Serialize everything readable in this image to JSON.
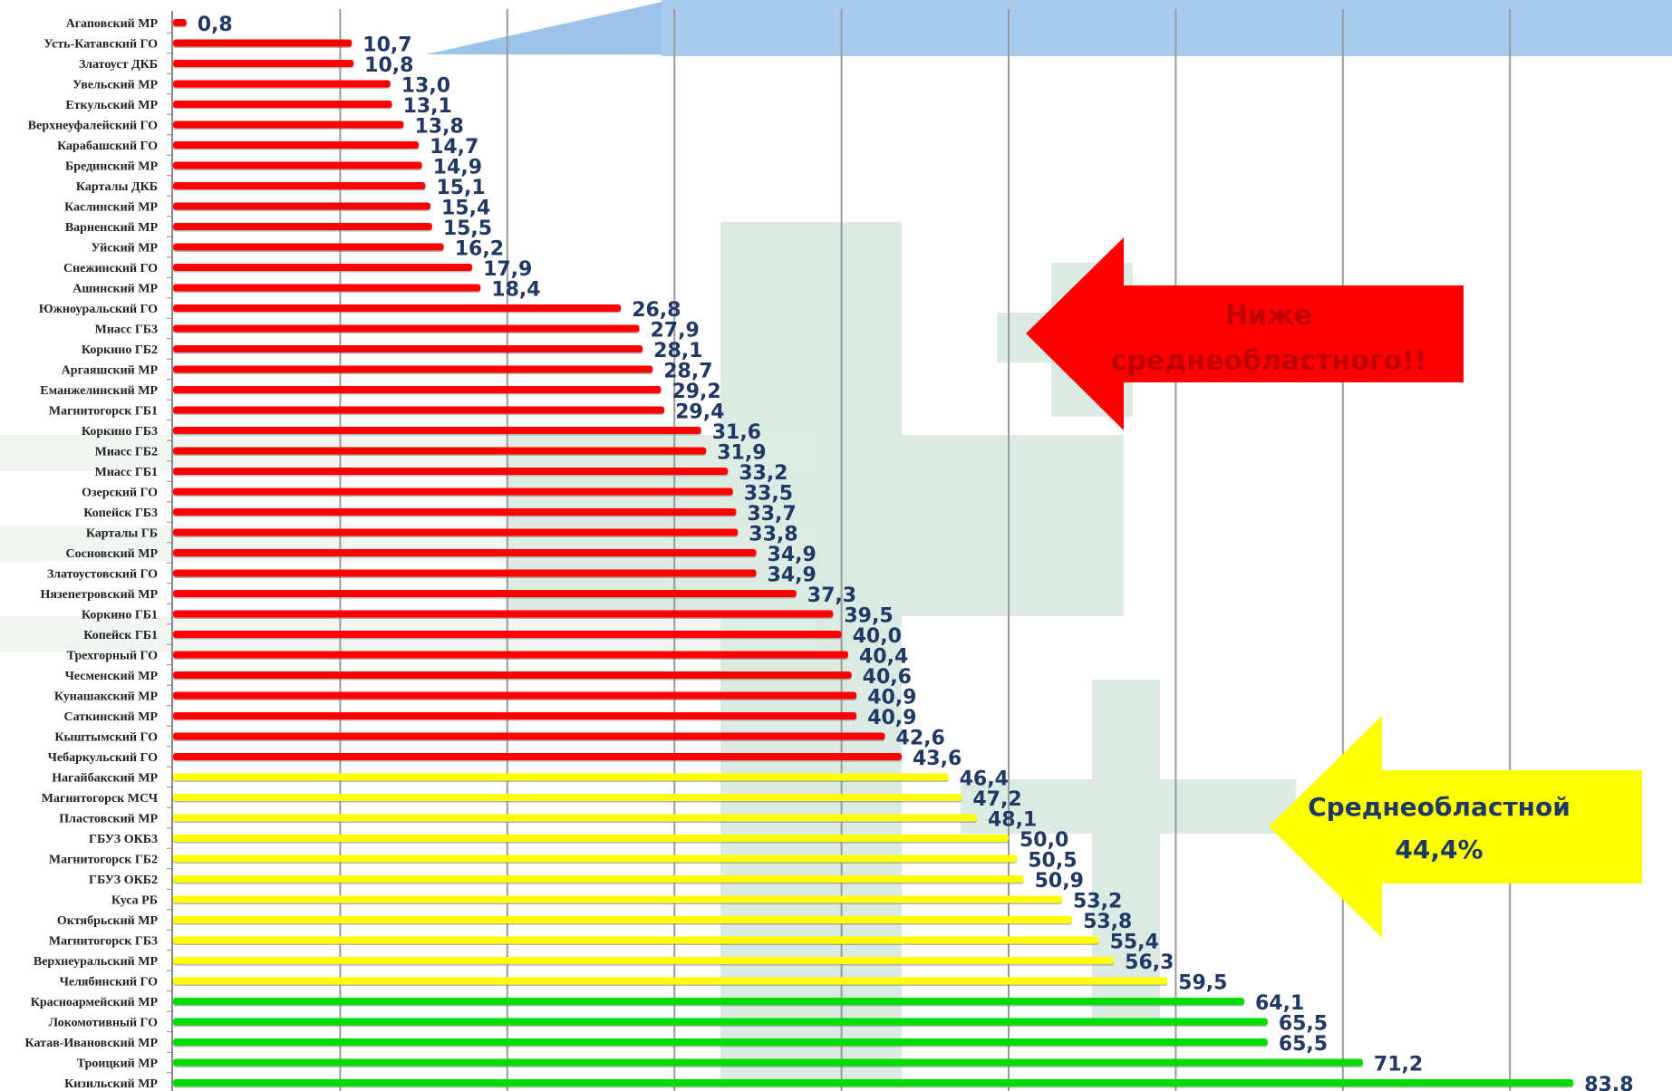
{
  "chart_data": {
    "type": "bar",
    "orientation": "horizontal",
    "xlim": [
      0,
      90
    ],
    "grid": true,
    "categories": [
      "Агаповский МР",
      "Усть-Катавский ГО",
      "Златоуст ДКБ",
      "Увельский МР",
      "Еткульский МР",
      "Верхнеуфалейский ГО",
      "Карабашский ГО",
      "Брединский МР",
      "Карталы ДКБ",
      "Каслинский МР",
      "Варненский МР",
      "Уйский МР",
      "Снежинский ГО",
      "Ашинский МР",
      "Южноуральский ГО",
      "Миасс ГБ3",
      "Коркино ГБ2",
      "Аргаяшский МР",
      "Еманжелинский МР",
      "Магнитогорск ГБ1",
      "Коркино ГБ3",
      "Миасс ГБ2",
      "Миасс ГБ1",
      "Озерский ГО",
      "Копейск ГБ3",
      "Карталы ГБ",
      "Сосновский МР",
      "Златоустовский ГО",
      "Нязепетровский МР",
      "Коркино ГБ1",
      "Копейск ГБ1",
      "Трехгорный ГО",
      "Чесменский МР",
      "Кунашакский МР",
      "Саткинский МР",
      "Кыштымский ГО",
      "Чебаркульский ГО",
      "Нагайбакский МР",
      "Магнитогорск МСЧ",
      "Пластовский МР",
      "ГБУЗ ОКБ3",
      "Магнитогорск ГБ2",
      "ГБУЗ ОКБ2",
      "Куса РБ",
      "Октябрьский МР",
      "Магнитогорск ГБ3",
      "Верхнеуральский МР",
      "Челябинский ГО",
      "Красноармейский МР",
      "Локомотивный ГО",
      "Катав-Ивановский МР",
      "Троицкий МР",
      "Кизильский МР"
    ],
    "values": [
      0.8,
      10.7,
      10.8,
      13.0,
      13.1,
      13.8,
      14.7,
      14.9,
      15.1,
      15.4,
      15.5,
      16.2,
      17.9,
      18.4,
      26.8,
      27.9,
      28.1,
      28.7,
      29.2,
      29.4,
      31.6,
      31.9,
      33.2,
      33.5,
      33.7,
      33.8,
      34.9,
      34.9,
      37.3,
      39.5,
      40.0,
      40.4,
      40.6,
      40.9,
      40.9,
      42.6,
      43.6,
      46.4,
      47.2,
      48.1,
      50.0,
      50.5,
      50.9,
      53.2,
      53.8,
      55.4,
      56.3,
      59.5,
      64.1,
      65.5,
      65.5,
      71.2,
      83.8
    ],
    "value_labels": [
      "0,8",
      "10,7",
      "10,8",
      "13,0",
      "13,1",
      "13,8",
      "14,7",
      "14,9",
      "15,1",
      "15,4",
      "15,5",
      "16,2",
      "17,9",
      "18,4",
      "26,8",
      "27,9",
      "28,1",
      "28,7",
      "29,2",
      "29,4",
      "31,6",
      "31,9",
      "33,2",
      "33,5",
      "33,7",
      "33,8",
      "34,9",
      "34,9",
      "37,3",
      "39,5",
      "40,0",
      "40,4",
      "40,6",
      "40,9",
      "40,9",
      "42,6",
      "43,6",
      "46,4",
      "47,2",
      "48,1",
      "50,0",
      "50,5",
      "50,9",
      "53,2",
      "53,8",
      "55,4",
      "56,3",
      "59,5",
      "64,1",
      "65,5",
      "65,5",
      "71,2",
      "83,8"
    ],
    "bar_colors": {
      "below": "#ff0000",
      "middle": "#ffff00",
      "high": "#00dd00"
    },
    "color_rule": {
      "below_until_index": 36,
      "middle_until_index": 47
    }
  },
  "callouts": {
    "below": {
      "line1": "Ниже",
      "line2": "среднеобластного!!",
      "color": "#ff0000",
      "text_color": "#c00000"
    },
    "average": {
      "line1": "Среднеобластной",
      "line2": "44,4%",
      "color": "#ffff00",
      "text_color": "#1f3864"
    }
  }
}
